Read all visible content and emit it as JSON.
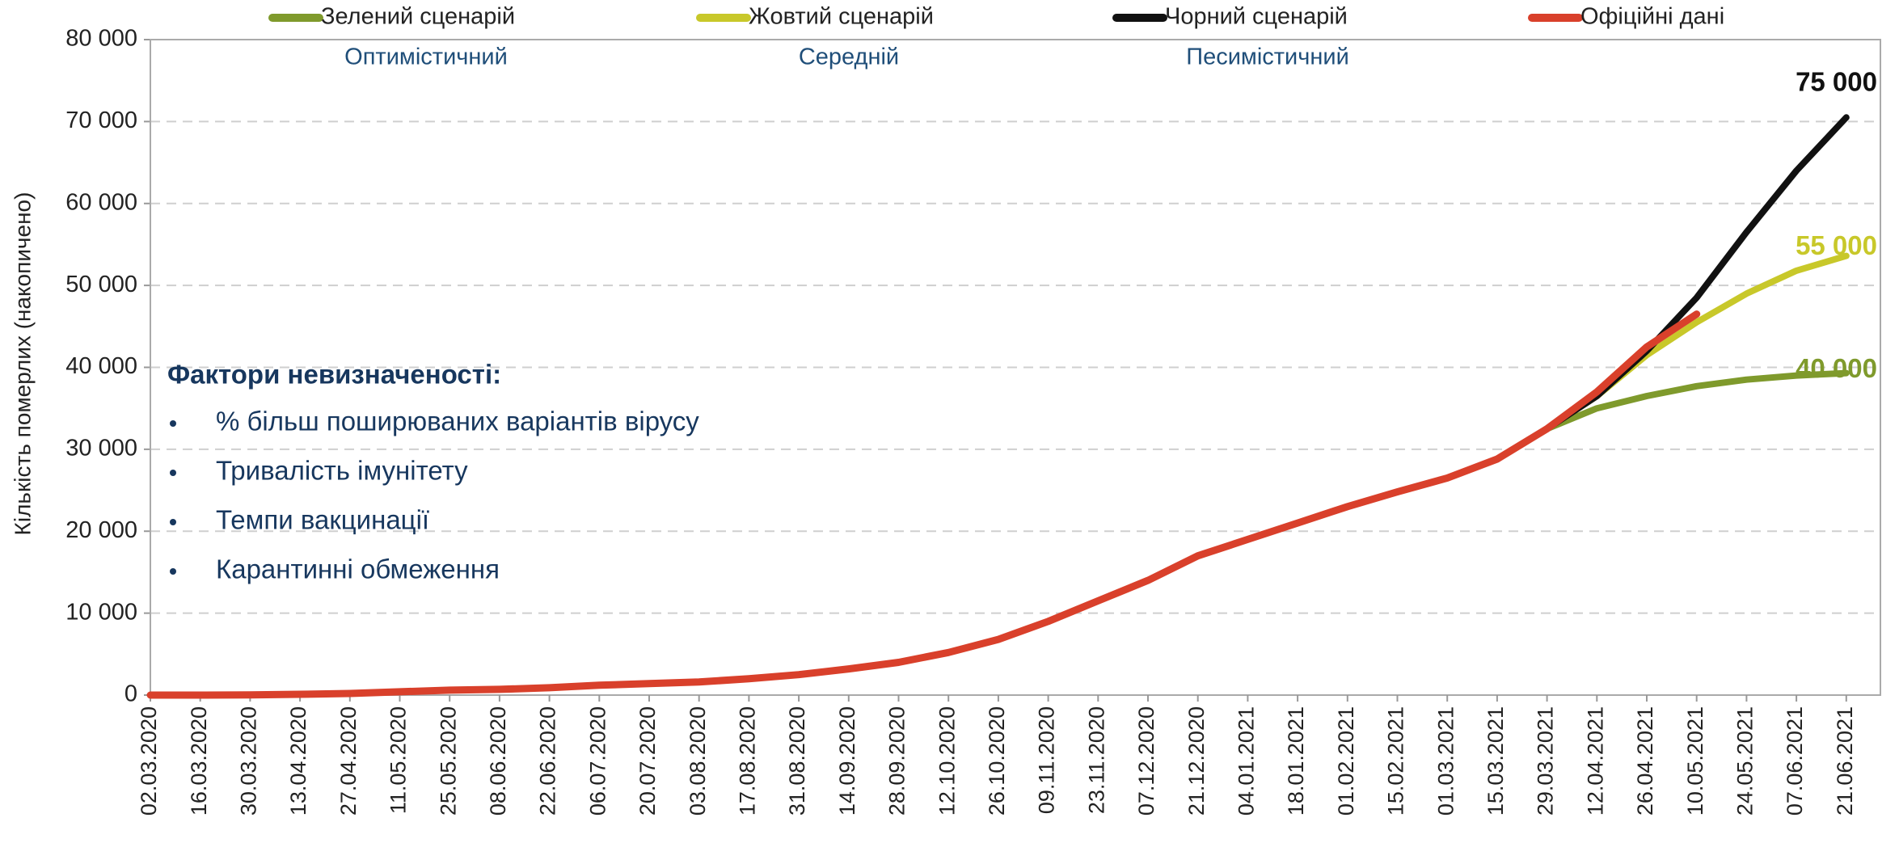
{
  "chart_data": {
    "type": "line",
    "ylabel": "Кількість померлих (накопичено)",
    "categories": [
      "02.03.2020",
      "16.03.2020",
      "30.03.2020",
      "13.04.2020",
      "27.04.2020",
      "11.05.2020",
      "25.05.2020",
      "08.06.2020",
      "22.06.2020",
      "06.07.2020",
      "20.07.2020",
      "03.08.2020",
      "17.08.2020",
      "31.08.2020",
      "14.09.2020",
      "28.09.2020",
      "12.10.2020",
      "26.10.2020",
      "09.11.2020",
      "23.11.2020",
      "07.12.2020",
      "21.12.2020",
      "04.01.2021",
      "18.01.2021",
      "01.02.2021",
      "15.02.2021",
      "01.03.2021",
      "15.03.2021",
      "29.03.2021",
      "12.04.2021",
      "26.04.2021",
      "10.05.2021",
      "24.05.2021",
      "07.06.2021",
      "21.06.2021"
    ],
    "series": [
      {
        "name": "Зелений сценарій",
        "description": "Оптимістичний",
        "color": "#7f9a2c",
        "values": [
          null,
          null,
          null,
          null,
          null,
          null,
          null,
          null,
          null,
          null,
          null,
          null,
          null,
          null,
          null,
          null,
          null,
          null,
          null,
          null,
          null,
          null,
          null,
          null,
          null,
          null,
          null,
          null,
          32500,
          35000,
          36500,
          37700,
          38500,
          39000,
          39300
        ],
        "end_label": {
          "value": 40000,
          "label": "40 000"
        }
      },
      {
        "name": "Жовтий сценарій",
        "description": "Середній",
        "color": "#c8c82a",
        "values": [
          null,
          null,
          null,
          null,
          null,
          null,
          null,
          null,
          null,
          null,
          null,
          null,
          null,
          null,
          null,
          null,
          null,
          null,
          null,
          null,
          null,
          null,
          null,
          null,
          null,
          null,
          null,
          null,
          32500,
          36500,
          41500,
          45500,
          49000,
          51800,
          53600
        ],
        "end_label": {
          "value": 55000,
          "label": "55 000"
        }
      },
      {
        "name": "Чорний сценарій",
        "description": "Песимістичний",
        "color": "#111111",
        "values": [
          null,
          null,
          null,
          null,
          null,
          null,
          null,
          null,
          null,
          null,
          null,
          null,
          null,
          null,
          null,
          null,
          null,
          null,
          null,
          null,
          null,
          null,
          null,
          null,
          null,
          null,
          null,
          null,
          32500,
          36500,
          42000,
          48500,
          56500,
          64000,
          70500
        ],
        "end_label": {
          "value": 75000,
          "label": "75 000"
        }
      },
      {
        "name": "Офіційні дані",
        "color": "#d9402b",
        "values": [
          0,
          0,
          20,
          100,
          200,
          400,
          600,
          700,
          900,
          1200,
          1400,
          1600,
          2000,
          2500,
          3200,
          4000,
          5200,
          6800,
          9000,
          11500,
          14000,
          17000,
          19000,
          21000,
          23000,
          24800,
          26500,
          28800,
          32500,
          37000,
          42500,
          46500,
          null,
          null,
          null
        ]
      }
    ],
    "ylim": [
      0,
      80000
    ],
    "yticks": [
      0,
      {
        "value": 10000,
        "label": "10 000"
      },
      {
        "value": 20000,
        "label": "20 000"
      },
      {
        "value": 30000,
        "label": "30 000"
      },
      {
        "value": 40000,
        "label": "40 000"
      },
      {
        "value": 50000,
        "label": "50 000"
      },
      {
        "value": 60000,
        "label": "60 000"
      },
      {
        "value": 70000,
        "label": "70 000"
      },
      {
        "value": 80000,
        "label": "80 000"
      }
    ],
    "grid": true,
    "legend": "top",
    "factors": {
      "title": "Фактори невизначеності:",
      "items": [
        "% більш поширюваних варіантів вірусу",
        "Тривалість імунітету",
        "Темпи вакцинації",
        "Карантинні обмеження"
      ]
    }
  }
}
